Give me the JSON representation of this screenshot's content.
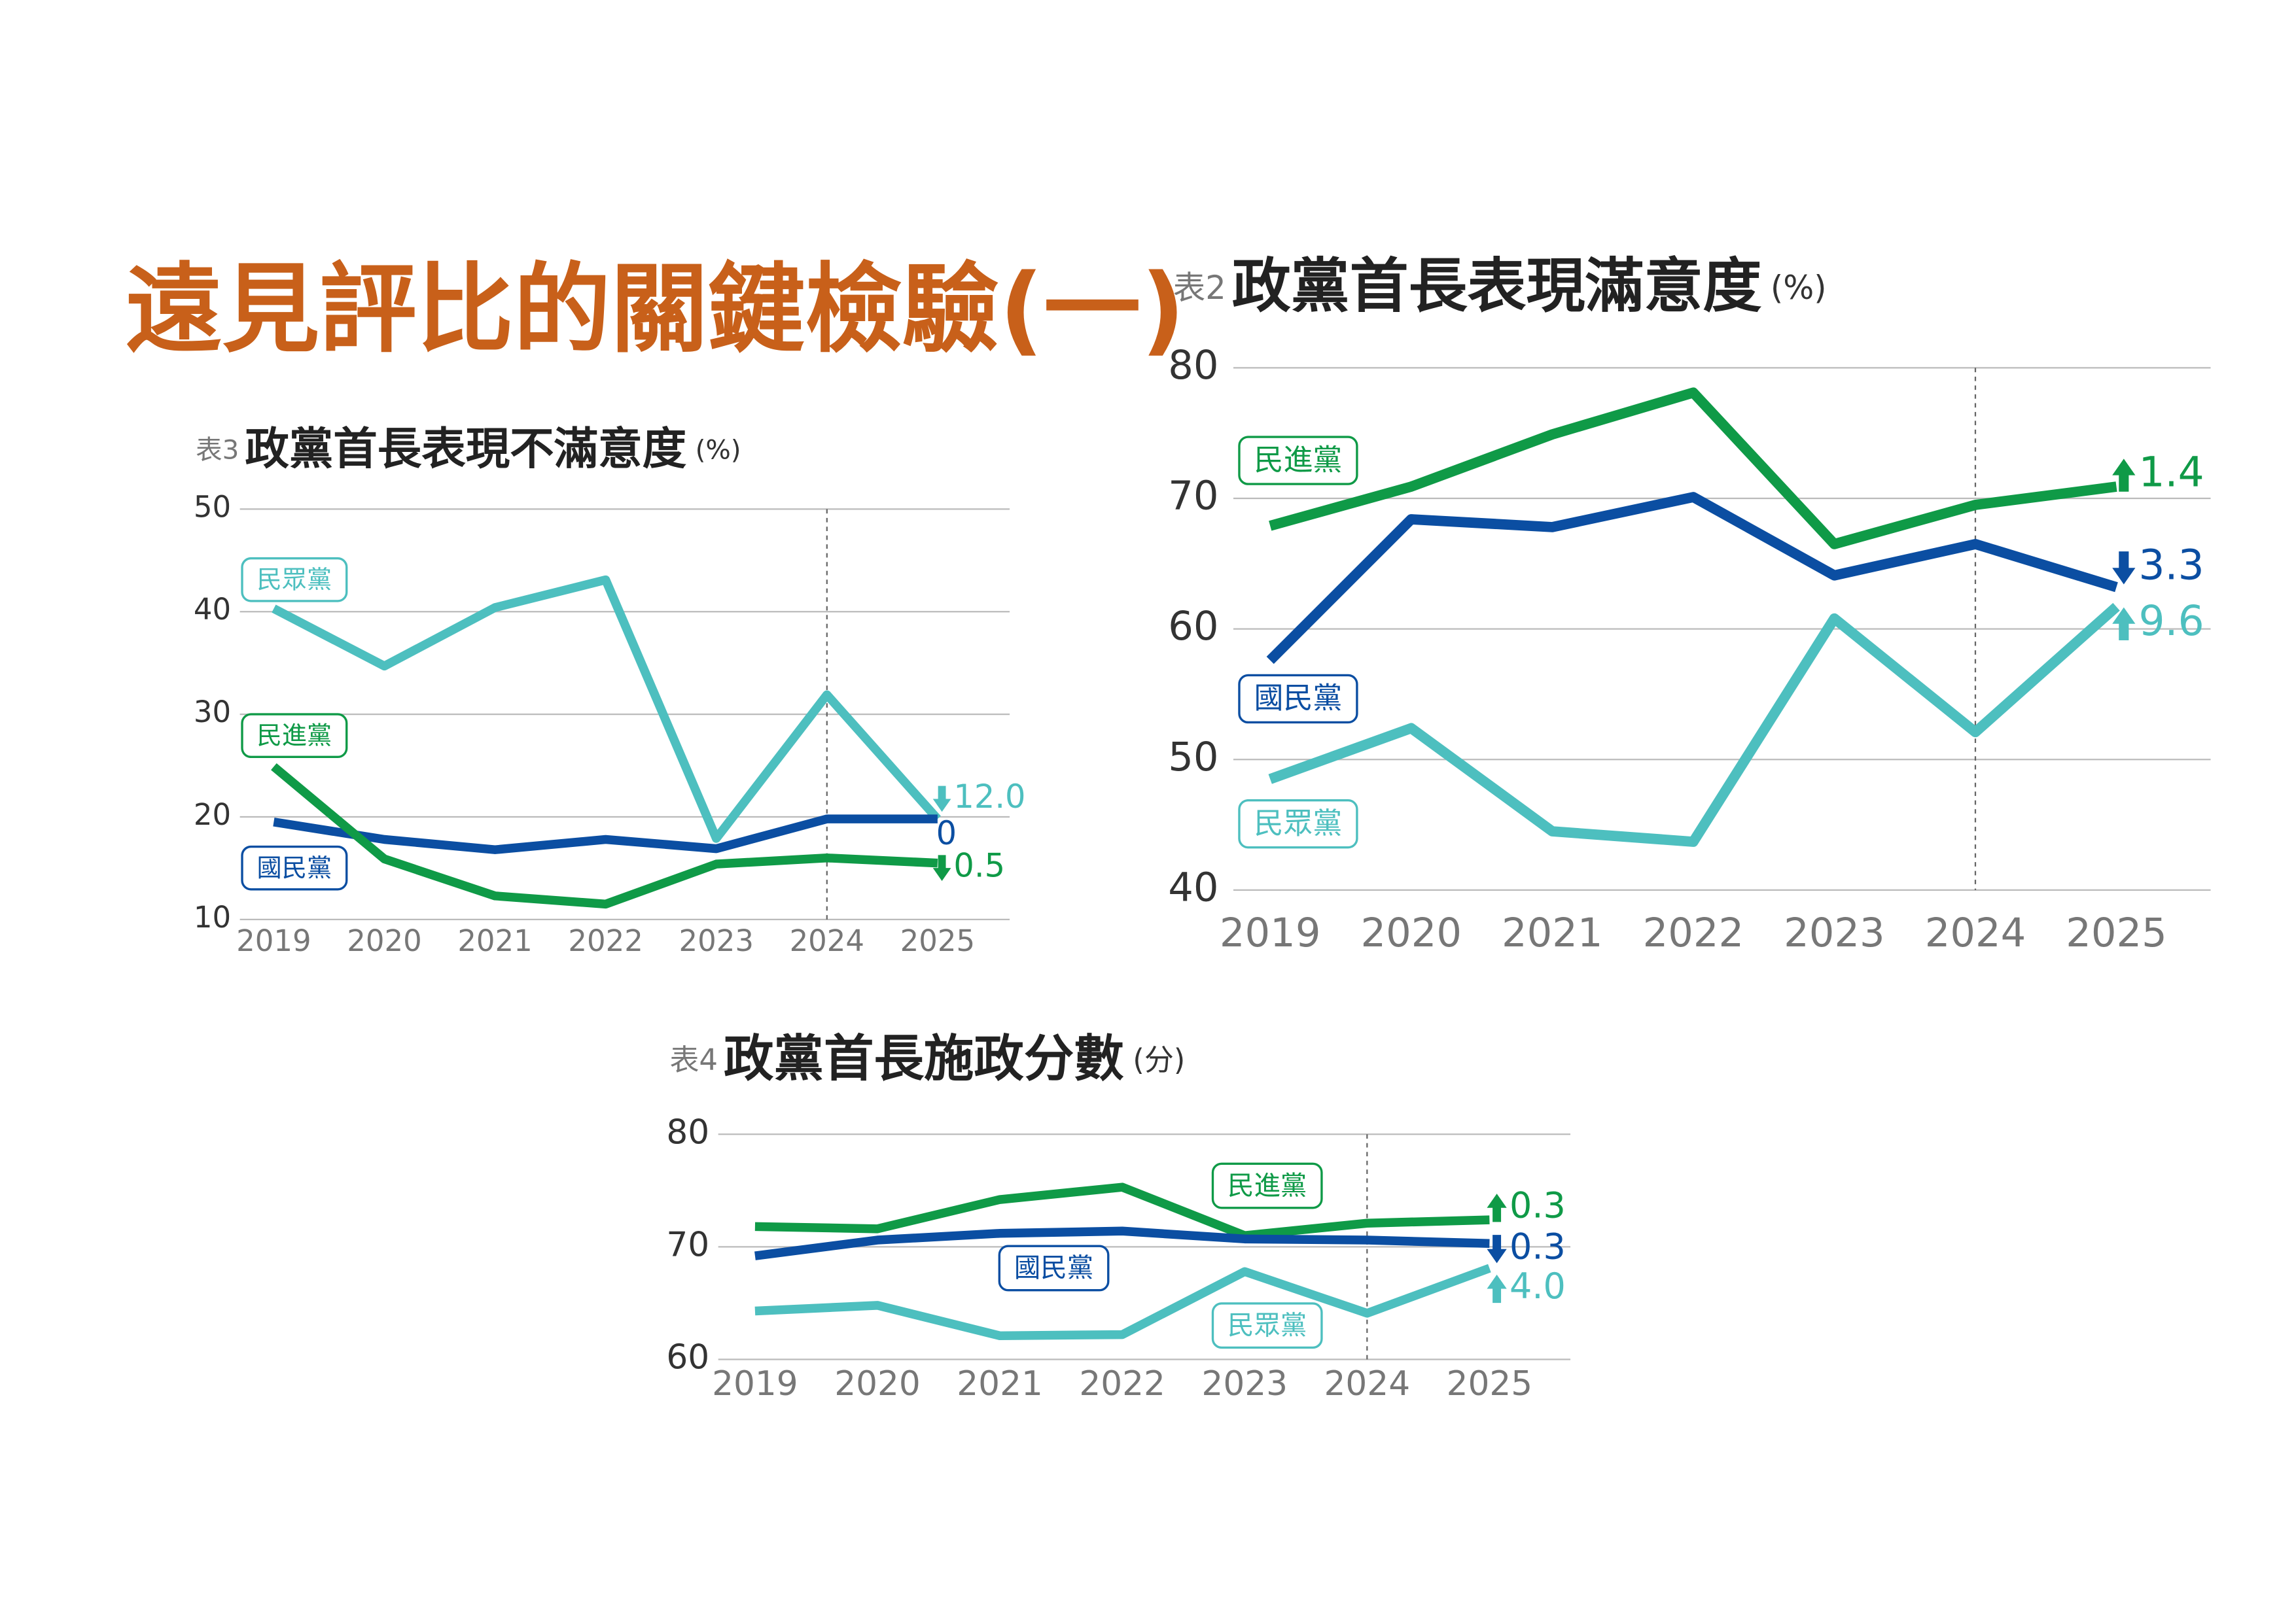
{
  "title": "遠見評比的關鍵檢驗(一)",
  "chart_data": [
    {
      "type": "line",
      "tag": "表3",
      "title": "政黨首長表現不滿意度",
      "unit": "(%)",
      "categories": [
        "2019",
        "2020",
        "2021",
        "2022",
        "2023",
        "2024",
        "2025"
      ],
      "ylim": [
        10,
        50
      ],
      "yticks": [
        10,
        20,
        30,
        40,
        50
      ],
      "grid": true,
      "highlight_category": "2024",
      "series": [
        {
          "name": "民眾黨",
          "color": "#4dbfbf",
          "values": [
            40.3,
            34.7,
            40.4,
            43.1,
            17.9,
            31.9,
            19.8
          ],
          "change": {
            "value": 12,
            "label": "12.0",
            "direction": "down"
          }
        },
        {
          "name": "國民黨",
          "color": "#0b4ea2",
          "values": [
            19.5,
            17.8,
            16.8,
            17.8,
            16.9,
            19.8,
            19.8
          ],
          "change": {
            "value": 0,
            "label": "0"
          }
        },
        {
          "name": "民進黨",
          "color": "#0f9a47",
          "values": [
            24.9,
            15.9,
            12.3,
            11.5,
            15.4,
            16.0,
            15.5
          ],
          "change": {
            "value": 0.5,
            "label": "0.5",
            "direction": "down"
          }
        }
      ]
    },
    {
      "type": "line",
      "tag": "表2",
      "title": "政黨首長表現滿意度",
      "unit": "(%)",
      "categories": [
        "2019",
        "2020",
        "2021",
        "2022",
        "2023",
        "2024",
        "2025"
      ],
      "ylim": [
        40,
        80
      ],
      "yticks": [
        40,
        50,
        60,
        70,
        80
      ],
      "grid": true,
      "highlight_category": "2024",
      "series": [
        {
          "name": "民進黨",
          "color": "#0f9a47",
          "values": [
            67.9,
            70.9,
            74.9,
            78.1,
            66.5,
            69.5,
            70.9
          ],
          "change": {
            "value": 1.4,
            "label": "1.4",
            "direction": "up"
          }
        },
        {
          "name": "國民黨",
          "color": "#0b4ea2",
          "values": [
            57.6,
            68.4,
            67.8,
            70.1,
            64.1,
            66.5,
            63.2
          ],
          "change": {
            "value": 3.3,
            "label": "3.3",
            "direction": "down"
          }
        },
        {
          "name": "民眾黨",
          "color": "#4dbfbf",
          "values": [
            48.5,
            52.4,
            44.5,
            43.7,
            60.8,
            52.1,
            61.7
          ],
          "change": {
            "value": 9.6,
            "label": "9.6",
            "direction": "up"
          }
        }
      ]
    },
    {
      "type": "line",
      "tag": "表4",
      "title": "政黨首長施政分數",
      "unit": "(分)",
      "categories": [
        "2019",
        "2020",
        "2021",
        "2022",
        "2023",
        "2024",
        "2025"
      ],
      "ylim": [
        60,
        80
      ],
      "yticks": [
        60,
        70,
        80
      ],
      "grid": true,
      "highlight_category": "2024",
      "series": [
        {
          "name": "民進黨",
          "color": "#0f9a47",
          "values": [
            71.8,
            71.6,
            74.2,
            75.3,
            71.0,
            72.1,
            72.4
          ],
          "change": {
            "value": 0.3,
            "label": "0.3",
            "direction": "up"
          }
        },
        {
          "name": "國民黨",
          "color": "#0b4ea2",
          "values": [
            69.2,
            70.6,
            71.2,
            71.4,
            70.7,
            70.6,
            70.3
          ],
          "change": {
            "value": 0.3,
            "label": "0.3",
            "direction": "down"
          }
        },
        {
          "name": "民眾黨",
          "color": "#4dbfbf",
          "values": [
            64.3,
            64.8,
            62.1,
            62.2,
            67.8,
            64.1,
            68.1
          ],
          "change": {
            "value": 4.0,
            "label": "4.0",
            "direction": "up"
          }
        }
      ]
    }
  ]
}
